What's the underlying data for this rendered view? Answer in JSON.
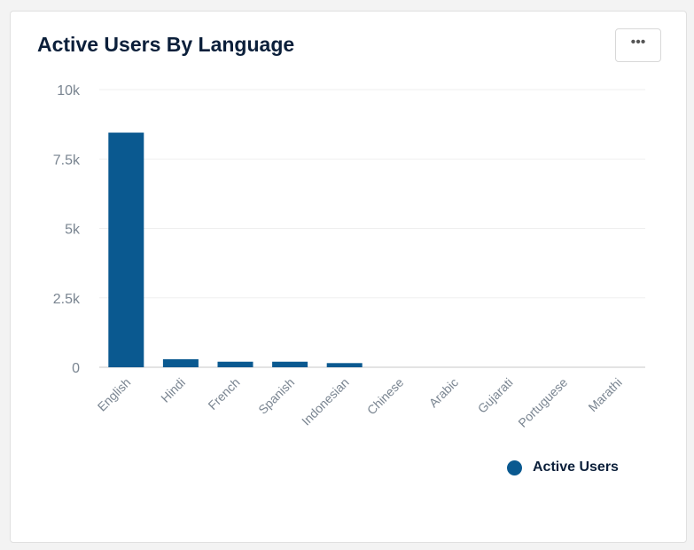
{
  "title": "Active Users By Language",
  "more_label": "•••",
  "colors": {
    "bar": "#0a5990"
  },
  "chart_data": {
    "type": "bar",
    "title": "Active Users By Language",
    "categories": [
      "English",
      "Hindi",
      "French",
      "Spanish",
      "Indonesian",
      "Chinese",
      "Arabic",
      "Gujarati",
      "Portuguese",
      "Marathi"
    ],
    "series": [
      {
        "name": "Active Users",
        "values": [
          8450,
          290,
          200,
          200,
          150,
          0,
          0,
          0,
          0,
          0
        ]
      }
    ],
    "ylim": [
      0,
      10000
    ],
    "yticks": [
      0,
      2500,
      5000,
      7500,
      10000
    ],
    "ytick_labels": [
      "0",
      "2.5k",
      "5k",
      "7.5k",
      "10k"
    ],
    "grid": true,
    "legend": "bottom-right"
  }
}
